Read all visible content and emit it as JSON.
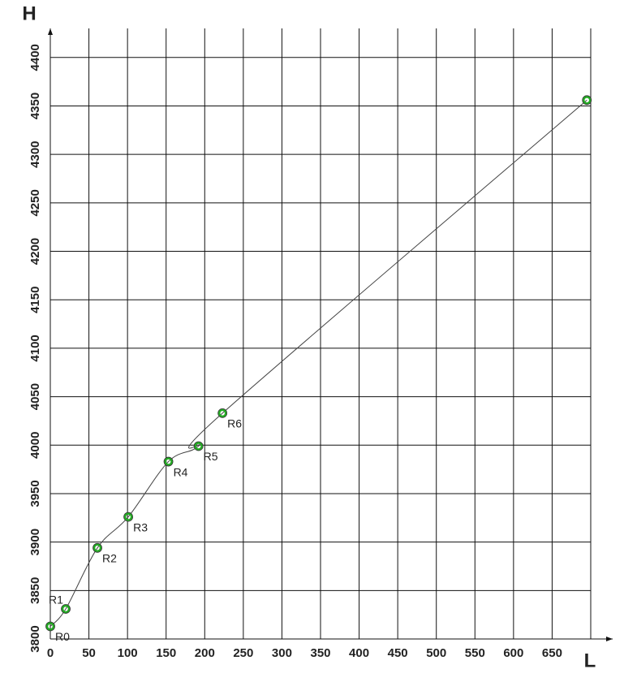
{
  "chart_data": {
    "type": "line",
    "x_label": "L",
    "y_label": "H",
    "x": [
      0,
      20,
      61,
      101,
      153,
      192,
      223,
      695
    ],
    "series": [
      {
        "values": [
          3813,
          3831,
          3894,
          3926,
          3983,
          3999,
          4033,
          4356
        ],
        "color": "#22aa22",
        "point_labels": [
          "R0",
          "R1",
          "R2",
          "R3",
          "R4",
          "R5",
          "R6",
          null
        ]
      }
    ],
    "xlim": [
      0,
      700
    ],
    "ylim": [
      3800,
      4430
    ],
    "xticks": [
      0,
      50,
      100,
      150,
      200,
      250,
      300,
      350,
      400,
      450,
      500,
      550,
      600,
      650
    ],
    "yticks": [
      3800,
      3850,
      3900,
      3950,
      4000,
      4050,
      4100,
      4150,
      4200,
      4250,
      4300,
      4350,
      4400
    ],
    "grid": true
  }
}
